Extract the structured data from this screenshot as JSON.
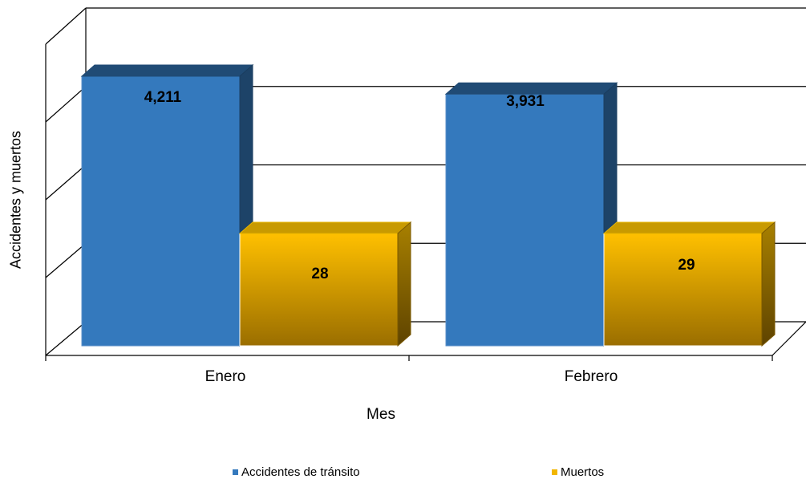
{
  "chart_data": {
    "type": "bar",
    "categories": [
      "Enero",
      "Febrero"
    ],
    "series": [
      {
        "name": "Accidentes de tránsito",
        "values": [
          4211,
          3931
        ],
        "value_labels": [
          "4,211",
          "3,931"
        ],
        "color": "#3479bd"
      },
      {
        "name": "Muertos",
        "values": [
          28,
          29
        ],
        "value_labels": [
          "28",
          "29"
        ],
        "color": "#f2b600"
      }
    ],
    "xlabel": "Mes",
    "ylabel": "Accidentes y muertos",
    "grid": true,
    "legend_position": "bottom",
    "style": "3d-column"
  }
}
